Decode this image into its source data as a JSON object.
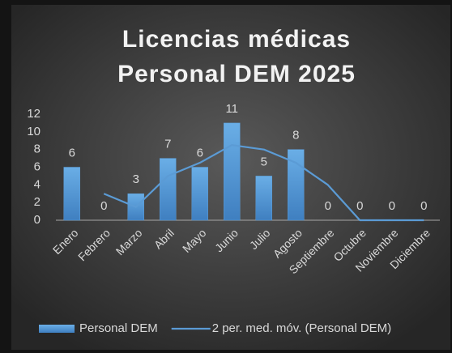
{
  "chart_data": {
    "type": "bar",
    "title": [
      "Licencias médicas",
      "Personal DEM 2025"
    ],
    "categories": [
      "Enero",
      "Febrero",
      "Marzo",
      "Abril",
      "Mayo",
      "Junio",
      "Julio",
      "Agosto",
      "Septiembre",
      "Octubre",
      "Noviembre",
      "Diciembre"
    ],
    "series": [
      {
        "name": "Personal DEM",
        "type": "bar",
        "color": "#5b9bd5",
        "values": [
          6,
          0,
          3,
          7,
          6,
          11,
          5,
          8,
          0,
          0,
          0,
          0
        ]
      },
      {
        "name": "2 per. med. móv. (Personal DEM)",
        "type": "line",
        "color": "#5b9bd5",
        "values": [
          null,
          3,
          1.5,
          5,
          6.5,
          8.5,
          8,
          6.5,
          4,
          0,
          0,
          0
        ]
      }
    ],
    "ylim": [
      0,
      12
    ],
    "yticks": [
      0,
      2,
      4,
      6,
      8,
      10,
      12
    ],
    "grid": false,
    "legend": "bottom"
  }
}
